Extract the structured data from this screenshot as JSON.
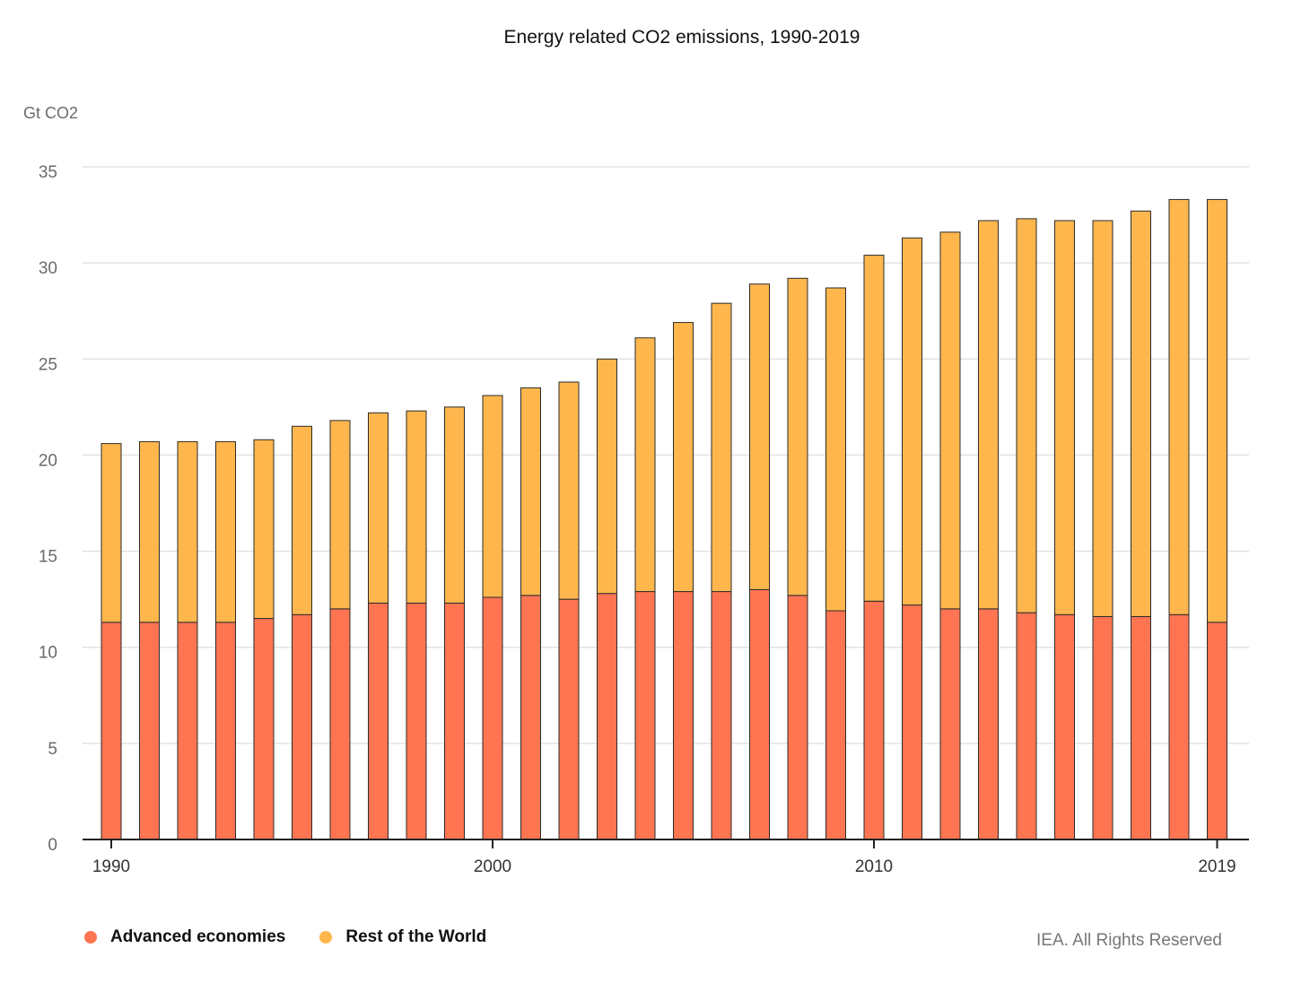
{
  "chart_data": {
    "type": "bar",
    "stacked": true,
    "title": "Energy related CO2 emissions, 1990-2019",
    "ylabel": "Gt CO2",
    "xlabel": "",
    "ylim": [
      0,
      35
    ],
    "yticks": [
      0,
      5,
      10,
      15,
      20,
      25,
      30,
      35
    ],
    "grid": true,
    "legend_position": "bottom-left",
    "x_tick_labels": [
      "1990",
      "2000",
      "2010",
      "2019"
    ],
    "categories": [
      "1990",
      "1991",
      "1992",
      "1993",
      "1994",
      "1995",
      "1996",
      "1997",
      "1998",
      "1999",
      "2000",
      "2001",
      "2002",
      "2003",
      "2004",
      "2005",
      "2006",
      "2007",
      "2008",
      "2009",
      "2010",
      "2011",
      "2012",
      "2013",
      "2014",
      "2015",
      "2016",
      "2017",
      "2018",
      "2019"
    ],
    "series": [
      {
        "name": "Advanced economies",
        "color": "#ff7552",
        "values": [
          11.3,
          11.3,
          11.3,
          11.3,
          11.5,
          11.7,
          12.0,
          12.3,
          12.3,
          12.3,
          12.6,
          12.7,
          12.5,
          12.8,
          12.9,
          12.9,
          12.9,
          13.0,
          12.7,
          11.9,
          12.4,
          12.2,
          12.0,
          12.0,
          11.8,
          11.7,
          11.6,
          11.6,
          11.7,
          11.3
        ]
      },
      {
        "name": "Rest of the World",
        "color": "#ffb74d",
        "values": [
          9.3,
          9.4,
          9.4,
          9.4,
          9.3,
          9.8,
          9.8,
          9.9,
          10.0,
          10.2,
          10.5,
          10.8,
          11.3,
          12.2,
          13.2,
          14.0,
          15.0,
          15.9,
          16.5,
          16.8,
          18.0,
          19.1,
          19.6,
          20.2,
          20.5,
          20.5,
          20.6,
          21.1,
          21.6,
          22.0
        ]
      }
    ]
  },
  "credit": "IEA. All Rights Reserved"
}
